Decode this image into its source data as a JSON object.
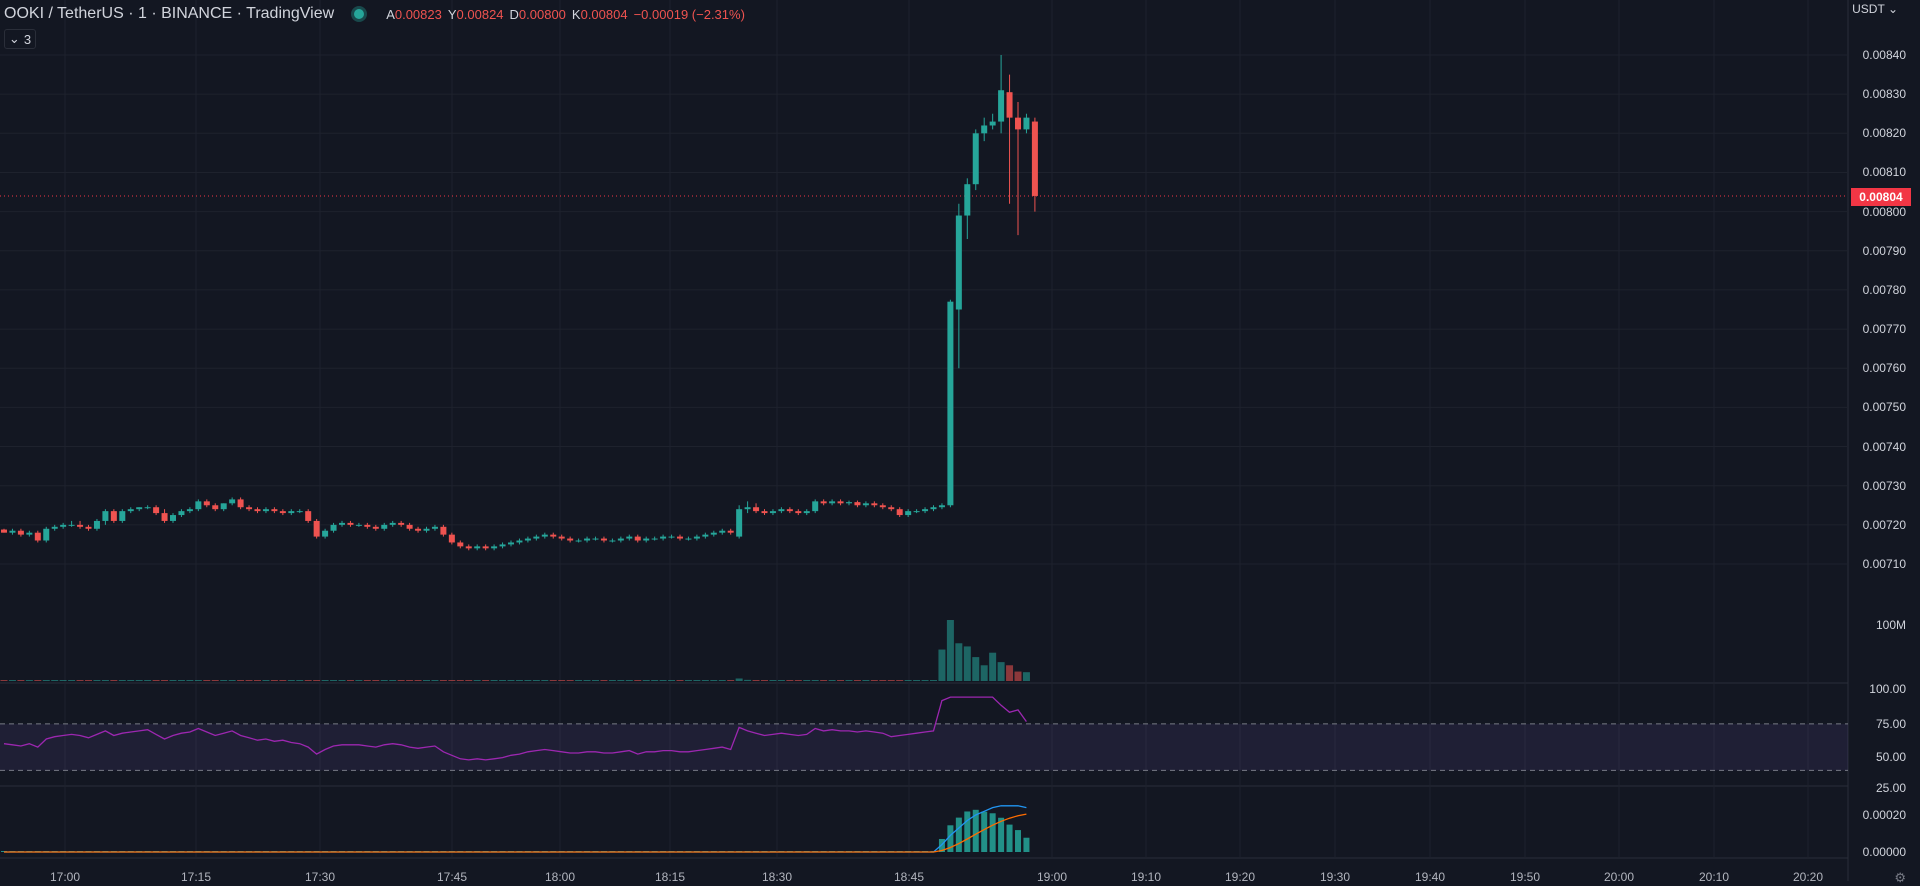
{
  "header": {
    "symbol": "OOKI / TetherUS · 1 · BINANCE · TradingView",
    "status_color": "#26a69a",
    "ohlc": [
      {
        "key": "A",
        "value": "0.00823"
      },
      {
        "key": "Y",
        "value": "0.00824"
      },
      {
        "key": "D",
        "value": "0.00800"
      },
      {
        "key": "K",
        "value": "0.00804"
      }
    ],
    "change": "−0.00019 (−2.31%)",
    "indicators_count": "3"
  },
  "price_axis": {
    "currency": "USDT",
    "labels": [
      "0.00840",
      "0.00830",
      "0.00820",
      "0.00810",
      "0.00800",
      "0.00790",
      "0.00780",
      "0.00770",
      "0.00760",
      "0.00750",
      "0.00740",
      "0.00730",
      "0.00720",
      "0.00710"
    ],
    "last_price": "0.00804"
  },
  "volume_axis": {
    "label": "100M"
  },
  "rsi_axis": {
    "labels": [
      "100.00",
      "75.00",
      "50.00",
      "25.00"
    ]
  },
  "macd_axis": {
    "labels": [
      "0.00020",
      "0.00000"
    ]
  },
  "time_axis": {
    "labels": [
      "17:00",
      "17:15",
      "17:30",
      "17:45",
      "18:00",
      "18:15",
      "18:30",
      "18:45",
      "19:00",
      "19:10",
      "19:20",
      "19:30",
      "19:40",
      "19:50",
      "20:00",
      "20:10",
      "20:20"
    ]
  },
  "colors": {
    "up": "#26a69a",
    "down": "#ef5350",
    "background": "#131722",
    "grid": "#1e222d",
    "rsi_line": "#9c27b0",
    "macd_line": "#2196f3",
    "signal_line": "#ff6d00"
  },
  "chart_data": {
    "type": "candlestick",
    "title": "OOKI / TetherUS",
    "interval_minutes": 1,
    "price_range": [
      0.00703,
      0.00848
    ],
    "candles": [
      [
        0.007188,
        0.00719,
        0.00718,
        0.00718
      ],
      [
        0.00718,
        0.00719,
        0.007175,
        0.007185
      ],
      [
        0.007185,
        0.00719,
        0.00717,
        0.007175
      ],
      [
        0.007175,
        0.007185,
        0.00717,
        0.00718
      ],
      [
        0.00718,
        0.007185,
        0.007155,
        0.00716
      ],
      [
        0.00716,
        0.007195,
        0.007155,
        0.00719
      ],
      [
        0.00719,
        0.0072,
        0.007185,
        0.007195
      ],
      [
        0.007195,
        0.007205,
        0.00719,
        0.0072
      ],
      [
        0.0072,
        0.00721,
        0.007195,
        0.0072
      ],
      [
        0.0072,
        0.00721,
        0.00719,
        0.007195
      ],
      [
        0.007195,
        0.0072,
        0.007185,
        0.00719
      ],
      [
        0.00719,
        0.007215,
        0.007185,
        0.00721
      ],
      [
        0.00721,
        0.00724,
        0.0072,
        0.007235
      ],
      [
        0.007235,
        0.00724,
        0.007205,
        0.00721
      ],
      [
        0.00721,
        0.00724,
        0.007205,
        0.007235
      ],
      [
        0.007235,
        0.007245,
        0.00723,
        0.00724
      ],
      [
        0.00724,
        0.007245,
        0.007235,
        0.007245
      ],
      [
        0.007245,
        0.00725,
        0.00724,
        0.007245
      ],
      [
        0.007245,
        0.00725,
        0.007225,
        0.00723
      ],
      [
        0.00723,
        0.00724,
        0.007205,
        0.00721
      ],
      [
        0.00721,
        0.00723,
        0.007205,
        0.007225
      ],
      [
        0.007225,
        0.00724,
        0.00722,
        0.007235
      ],
      [
        0.007235,
        0.007245,
        0.00723,
        0.00724
      ],
      [
        0.00724,
        0.007265,
        0.007235,
        0.00726
      ],
      [
        0.00726,
        0.007265,
        0.007245,
        0.00725
      ],
      [
        0.00725,
        0.007255,
        0.007235,
        0.00724
      ],
      [
        0.00724,
        0.007255,
        0.007235,
        0.007255
      ],
      [
        0.007255,
        0.00727,
        0.00725,
        0.007265
      ],
      [
        0.007265,
        0.00727,
        0.00724,
        0.007245
      ],
      [
        0.007245,
        0.00725,
        0.007235,
        0.00724
      ],
      [
        0.00724,
        0.007245,
        0.00723,
        0.007235
      ],
      [
        0.007235,
        0.007245,
        0.00723,
        0.00724
      ],
      [
        0.00724,
        0.007245,
        0.00723,
        0.007235
      ],
      [
        0.007235,
        0.00724,
        0.007225,
        0.00723
      ],
      [
        0.00723,
        0.00724,
        0.007225,
        0.007235
      ],
      [
        0.007235,
        0.00724,
        0.00723,
        0.007235
      ],
      [
        0.007235,
        0.00724,
        0.007205,
        0.00721
      ],
      [
        0.00721,
        0.007215,
        0.007165,
        0.00717
      ],
      [
        0.00717,
        0.00719,
        0.007165,
        0.007185
      ],
      [
        0.007185,
        0.007205,
        0.00718,
        0.0072
      ],
      [
        0.0072,
        0.00721,
        0.007195,
        0.007205
      ],
      [
        0.007205,
        0.00721,
        0.007195,
        0.0072
      ],
      [
        0.0072,
        0.007205,
        0.007195,
        0.0072
      ],
      [
        0.0072,
        0.007205,
        0.00719,
        0.007195
      ],
      [
        0.007195,
        0.0072,
        0.007185,
        0.00719
      ],
      [
        0.00719,
        0.007205,
        0.007185,
        0.0072
      ],
      [
        0.0072,
        0.00721,
        0.007195,
        0.007205
      ],
      [
        0.007205,
        0.00721,
        0.007195,
        0.0072
      ],
      [
        0.0072,
        0.007205,
        0.007185,
        0.00719
      ],
      [
        0.00719,
        0.007195,
        0.00718,
        0.007185
      ],
      [
        0.007185,
        0.007195,
        0.00718,
        0.00719
      ],
      [
        0.00719,
        0.0072,
        0.007185,
        0.007195
      ],
      [
        0.007195,
        0.0072,
        0.00717,
        0.007175
      ],
      [
        0.007175,
        0.00718,
        0.00715,
        0.007155
      ],
      [
        0.007155,
        0.00716,
        0.00714,
        0.007145
      ],
      [
        0.007145,
        0.00715,
        0.007135,
        0.00714
      ],
      [
        0.00714,
        0.00715,
        0.007135,
        0.007145
      ],
      [
        0.007145,
        0.00715,
        0.007135,
        0.00714
      ],
      [
        0.00714,
        0.00715,
        0.007135,
        0.007145
      ],
      [
        0.007145,
        0.007155,
        0.00714,
        0.00715
      ],
      [
        0.00715,
        0.00716,
        0.007145,
        0.007155
      ],
      [
        0.007155,
        0.007165,
        0.00715,
        0.00716
      ],
      [
        0.00716,
        0.00717,
        0.007155,
        0.007165
      ],
      [
        0.007165,
        0.007175,
        0.00716,
        0.00717
      ],
      [
        0.00717,
        0.00718,
        0.007165,
        0.007175
      ],
      [
        0.007175,
        0.00718,
        0.007165,
        0.00717
      ],
      [
        0.00717,
        0.007175,
        0.00716,
        0.007165
      ],
      [
        0.007165,
        0.00717,
        0.007155,
        0.00716
      ],
      [
        0.00716,
        0.007165,
        0.007155,
        0.00716
      ],
      [
        0.00716,
        0.00717,
        0.007155,
        0.007165
      ],
      [
        0.007165,
        0.00717,
        0.00716,
        0.007165
      ],
      [
        0.007165,
        0.00717,
        0.007155,
        0.00716
      ],
      [
        0.00716,
        0.007165,
        0.007155,
        0.00716
      ],
      [
        0.00716,
        0.00717,
        0.007155,
        0.007165
      ],
      [
        0.007165,
        0.007175,
        0.00716,
        0.00717
      ],
      [
        0.00717,
        0.007175,
        0.007155,
        0.00716
      ],
      [
        0.00716,
        0.00717,
        0.007155,
        0.007165
      ],
      [
        0.007165,
        0.00717,
        0.00716,
        0.007165
      ],
      [
        0.007165,
        0.007175,
        0.00716,
        0.00717
      ],
      [
        0.00717,
        0.007175,
        0.007165,
        0.00717
      ],
      [
        0.00717,
        0.007175,
        0.00716,
        0.007165
      ],
      [
        0.007165,
        0.00717,
        0.00716,
        0.007165
      ],
      [
        0.007165,
        0.007175,
        0.00716,
        0.00717
      ],
      [
        0.00717,
        0.00718,
        0.007165,
        0.007175
      ],
      [
        0.007175,
        0.007185,
        0.00717,
        0.00718
      ],
      [
        0.00718,
        0.00719,
        0.007175,
        0.007185
      ],
      [
        0.007185,
        0.00719,
        0.007175,
        0.00718
      ],
      [
        0.00717,
        0.00725,
        0.007165,
        0.00724
      ],
      [
        0.00724,
        0.00726,
        0.00723,
        0.007245
      ],
      [
        0.007245,
        0.007255,
        0.00723,
        0.007235
      ],
      [
        0.007235,
        0.00724,
        0.007225,
        0.00723
      ],
      [
        0.00723,
        0.00724,
        0.007225,
        0.007235
      ],
      [
        0.007235,
        0.007245,
        0.00723,
        0.00724
      ],
      [
        0.00724,
        0.007245,
        0.00723,
        0.007235
      ],
      [
        0.007235,
        0.00724,
        0.007225,
        0.00723
      ],
      [
        0.00723,
        0.00724,
        0.007225,
        0.007235
      ],
      [
        0.007235,
        0.007265,
        0.00723,
        0.00726
      ],
      [
        0.00726,
        0.007265,
        0.00725,
        0.007255
      ],
      [
        0.007255,
        0.007265,
        0.00725,
        0.00726
      ],
      [
        0.00726,
        0.007265,
        0.00725,
        0.007255
      ],
      [
        0.007255,
        0.007262,
        0.00725,
        0.007258
      ],
      [
        0.007258,
        0.007262,
        0.007245,
        0.00725
      ],
      [
        0.00725,
        0.00726,
        0.007245,
        0.007255
      ],
      [
        0.007255,
        0.00726,
        0.007245,
        0.00725
      ],
      [
        0.00725,
        0.007255,
        0.00724,
        0.007245
      ],
      [
        0.007245,
        0.00725,
        0.007235,
        0.00724
      ],
      [
        0.00724,
        0.007245,
        0.00722,
        0.007225
      ],
      [
        0.007225,
        0.00724,
        0.00722,
        0.007235
      ],
      [
        0.007235,
        0.00724,
        0.00723,
        0.007235
      ],
      [
        0.007235,
        0.007245,
        0.00723,
        0.00724
      ],
      [
        0.00724,
        0.00725,
        0.007235,
        0.007245
      ],
      [
        0.007245,
        0.007255,
        0.00724,
        0.00725
      ],
      [
        0.00725,
        0.007775,
        0.007245,
        0.00777
      ],
      [
        0.00775,
        0.00802,
        0.0076,
        0.00799
      ],
      [
        0.00799,
        0.008085,
        0.00793,
        0.00807
      ],
      [
        0.00807,
        0.00821,
        0.008055,
        0.0082
      ],
      [
        0.0082,
        0.00824,
        0.00818,
        0.00822
      ],
      [
        0.00822,
        0.00825,
        0.00821,
        0.00823
      ],
      [
        0.00823,
        0.0084,
        0.0082,
        0.00831
      ],
      [
        0.008305,
        0.00835,
        0.00802,
        0.00824
      ],
      [
        0.00824,
        0.00828,
        0.00794,
        0.00821
      ],
      [
        0.00821,
        0.00825,
        0.0082,
        0.00824
      ],
      [
        0.00823,
        0.00824,
        0.008,
        0.00804
      ]
    ],
    "volume": [
      0.8,
      0.6,
      0.7,
      0.5,
      1.1,
      0.9,
      0.6,
      0.5,
      0.6,
      0.5,
      0.4,
      0.7,
      0.9,
      0.6,
      0.7,
      0.5,
      0.4,
      0.5,
      0.6,
      0.8,
      0.6,
      0.5,
      0.5,
      0.8,
      0.6,
      0.5,
      0.6,
      0.7,
      0.6,
      0.5,
      0.4,
      0.5,
      0.4,
      0.5,
      0.4,
      0.4,
      0.9,
      1.3,
      0.8,
      0.6,
      0.5,
      0.4,
      0.4,
      0.5,
      0.4,
      0.5,
      0.6,
      0.4,
      0.5,
      0.4,
      0.4,
      0.5,
      0.7,
      1.0,
      0.8,
      0.5,
      0.4,
      0.4,
      0.4,
      0.5,
      0.5,
      0.4,
      0.5,
      0.4,
      0.4,
      0.4,
      0.5,
      0.4,
      0.4,
      0.4,
      0.4,
      0.4,
      0.3,
      0.4,
      0.4,
      0.4,
      0.4,
      0.3,
      0.4,
      0.4,
      0.4,
      0.3,
      0.4,
      0.4,
      0.5,
      0.4,
      0.4,
      4.0,
      1.8,
      1.0,
      0.8,
      0.7,
      0.8,
      0.7,
      0.6,
      0.7,
      1.5,
      0.9,
      0.8,
      0.7,
      0.6,
      0.7,
      0.6,
      0.6,
      0.6,
      0.9,
      0.7,
      0.6,
      0.6,
      0.7,
      0.7,
      50,
      97,
      60,
      55,
      38,
      25,
      45,
      30,
      25,
      15,
      14
    ],
    "rsi": [
      53,
      52,
      51,
      53,
      50,
      57,
      59,
      60,
      61,
      60,
      58,
      61,
      64,
      60,
      62,
      63,
      64,
      65,
      61,
      57,
      60,
      62,
      63,
      66,
      63,
      60,
      62,
      64,
      60,
      58,
      56,
      57,
      55,
      56,
      54,
      53,
      50,
      44,
      48,
      51,
      52,
      52,
      52,
      51,
      50,
      52,
      53,
      52,
      50,
      49,
      50,
      51,
      46,
      43,
      40,
      39,
      40,
      39,
      40,
      41,
      43,
      44,
      46,
      47,
      48,
      47,
      46,
      45,
      45,
      46,
      46,
      45,
      45,
      46,
      47,
      44,
      46,
      46,
      47,
      47,
      46,
      46,
      47,
      48,
      49,
      50,
      48,
      67,
      64,
      62,
      60,
      61,
      62,
      61,
      60,
      61,
      66,
      64,
      65,
      64,
      64,
      63,
      64,
      63,
      62,
      59,
      60,
      61,
      62,
      63,
      64,
      90,
      93,
      93,
      93,
      93,
      93,
      93,
      86,
      80,
      82,
      72
    ],
    "rsi_bands": [
      70,
      30
    ],
    "macd": [
      0.0,
      0.0,
      0.0,
      0.0,
      0.0,
      0.0,
      0.0,
      0.0,
      0.0,
      0.0,
      0.0,
      0.0,
      0.0,
      0.0,
      0.0,
      0.0,
      0.0,
      0.0,
      0.0,
      0.0,
      0.0,
      0.0,
      0.0,
      0.0,
      0.0,
      0.0,
      0.0,
      0.0,
      0.0,
      0.0,
      0.0,
      0.0,
      0.0,
      0.0,
      0.0,
      0.0,
      0.0,
      0.0,
      0.0,
      0.0,
      0.0,
      0.0,
      0.0,
      0.0,
      0.0,
      0.0,
      0.0,
      0.0,
      0.0,
      0.0,
      0.0,
      0.0,
      0.0,
      0.0,
      0.0,
      0.0,
      0.0,
      0.0,
      0.0,
      0.0,
      0.0,
      0.0,
      0.0,
      0.0,
      0.0,
      0.0,
      0.0,
      0.0,
      0.0,
      0.0,
      0.0,
      0.0,
      0.0,
      0.0,
      0.0,
      0.0,
      0.0,
      0.0,
      0.0,
      0.0,
      0.0,
      0.0,
      0.0,
      0.0,
      0.0,
      0.0,
      0.0,
      0.0,
      0.0,
      0.0,
      0.0,
      0.0,
      0.0,
      0.0,
      0.0,
      0.0,
      0.0,
      0.0,
      0.0,
      0.0,
      0.0,
      0.0,
      0.0,
      0.0,
      0.0,
      0.0,
      0.0,
      0.0,
      0.0,
      0.0,
      0.0,
      4e-05,
      9e-05,
      0.00013,
      0.00017,
      0.0002,
      0.00022,
      0.00024,
      0.00025,
      0.00025,
      0.00025,
      0.00024
    ]
  }
}
